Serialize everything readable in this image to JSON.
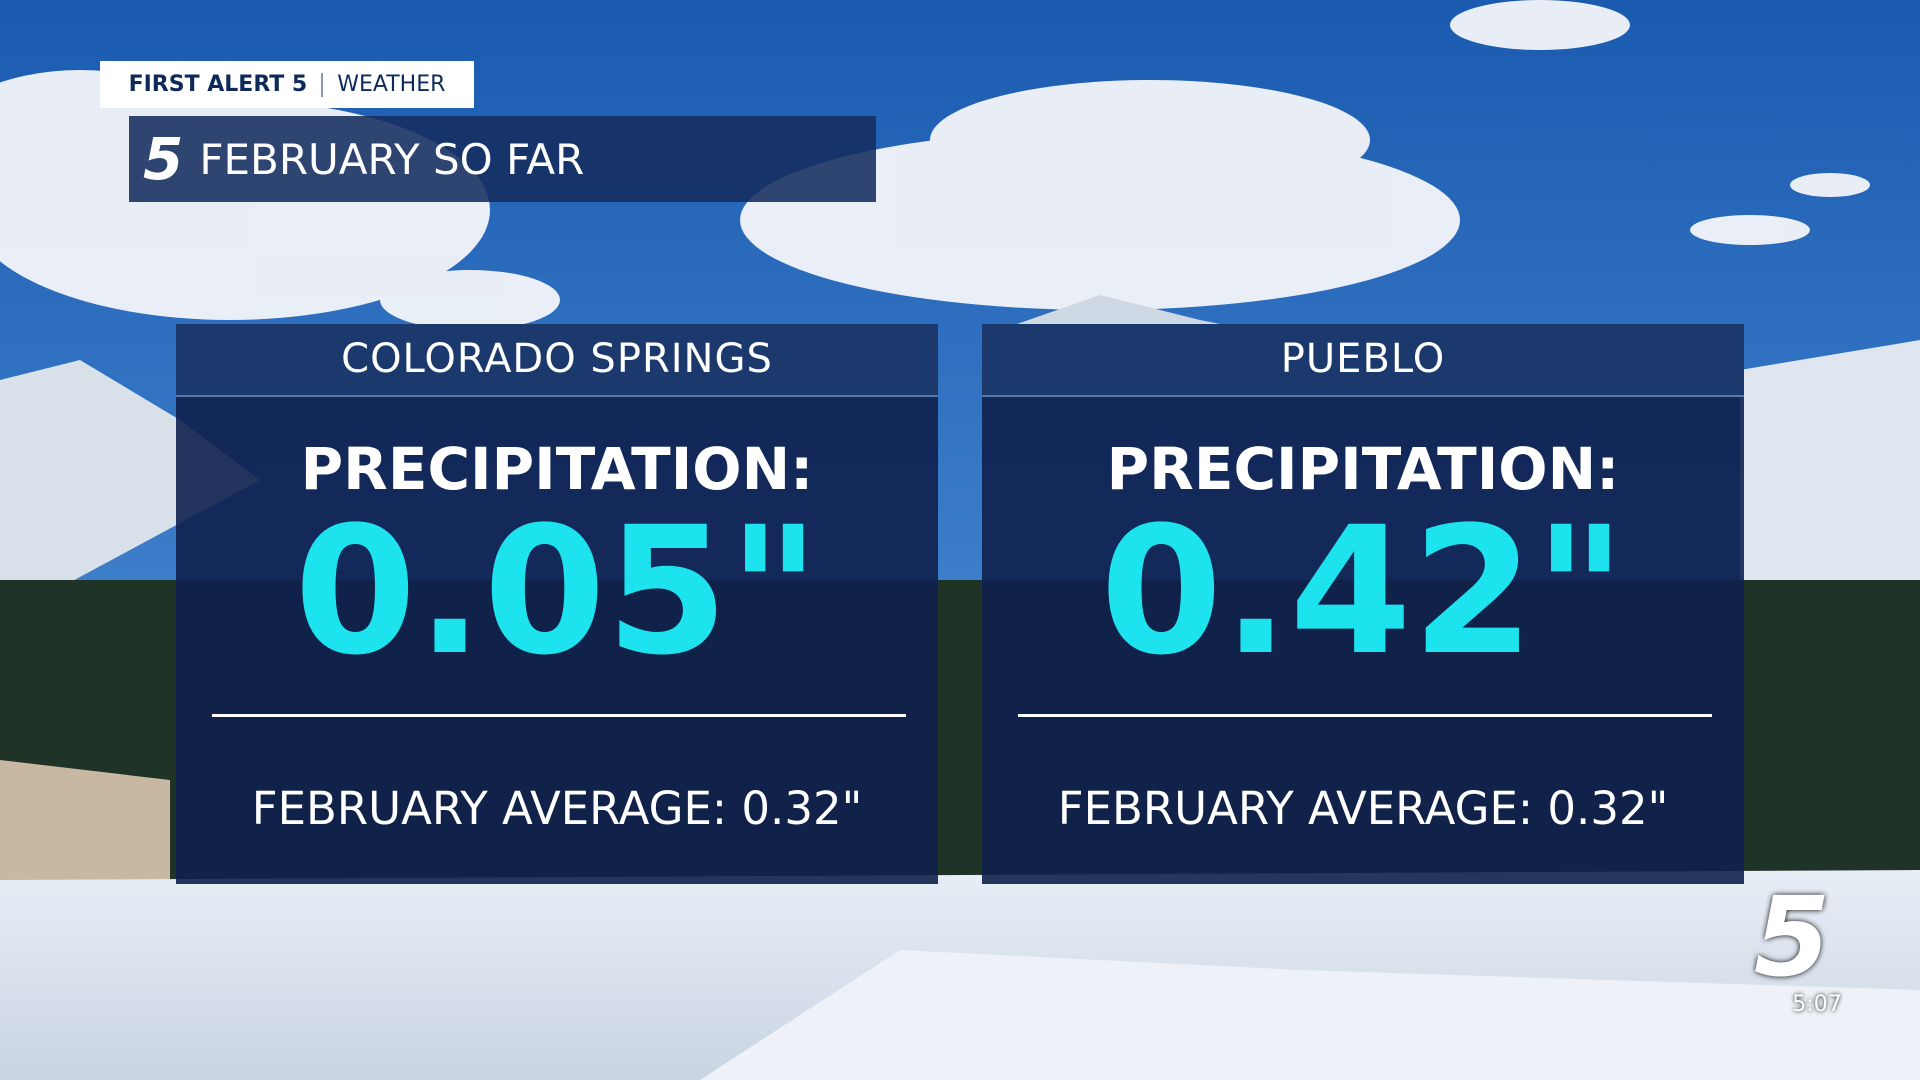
{
  "header": {
    "brand": "FIRST ALERT 5",
    "section": "WEATHER",
    "logo": "5",
    "title": "FEBRUARY SO FAR"
  },
  "panels": [
    {
      "city": "COLORADO SPRINGS",
      "label": "PRECIPITATION:",
      "value": "0.05\"",
      "average": "FEBRUARY AVERAGE: 0.32\""
    },
    {
      "city": "PUEBLO",
      "label": "PRECIPITATION:",
      "value": "0.42\"",
      "average": "FEBRUARY AVERAGE: 0.32\""
    }
  ],
  "bug": {
    "channel": "5",
    "time": "5:07"
  }
}
